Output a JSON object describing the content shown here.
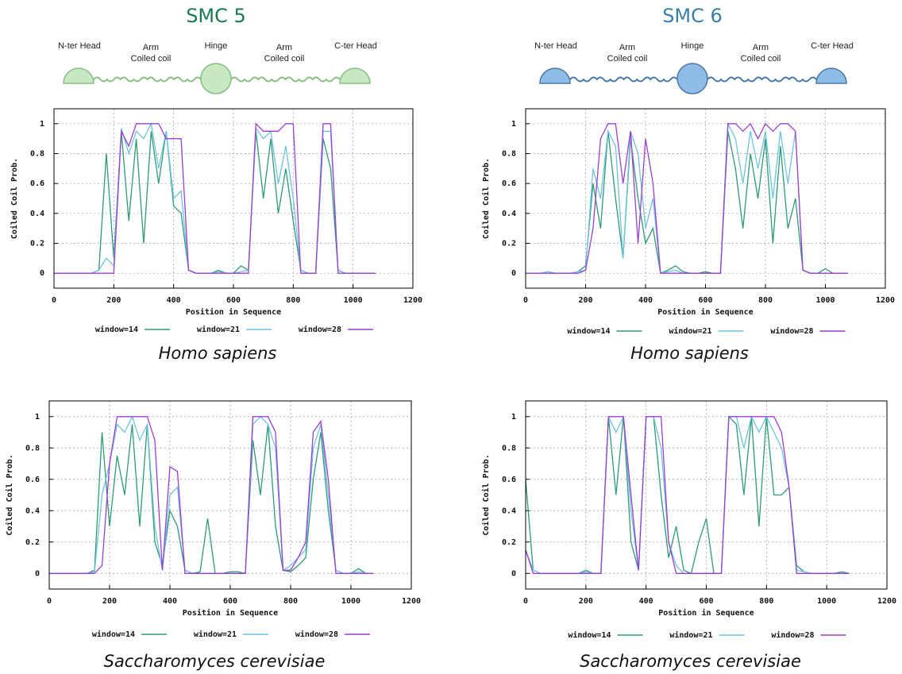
{
  "panels": [
    {
      "title": "SMC 5",
      "domains": [
        [
          "N-ter Head"
        ],
        [
          "Arm",
          "Coiled coil"
        ],
        [
          "Hinge"
        ],
        [
          "Arm",
          "Coiled coil"
        ],
        [
          "C-ter Head"
        ]
      ]
    },
    {
      "title": "SMC 6",
      "domains": [
        [
          "N-ter Head"
        ],
        [
          "Arm",
          "Coiled coil"
        ],
        [
          "Hinge"
        ],
        [
          "Arm",
          "Coiled coil"
        ],
        [
          "C-ter Head"
        ]
      ]
    }
  ],
  "chart_data": [
    {
      "type": "line",
      "caption": "Homo sapiens",
      "xlabel": "Position in Sequence",
      "ylabel": "Coiled Coil Prob.",
      "x": [
        0,
        25,
        50,
        75,
        100,
        125,
        150,
        175,
        200,
        225,
        250,
        275,
        300,
        325,
        350,
        375,
        400,
        425,
        450,
        475,
        500,
        525,
        550,
        575,
        600,
        625,
        650,
        675,
        700,
        725,
        750,
        775,
        800,
        825,
        850,
        875,
        900,
        925,
        950,
        975,
        1000,
        1025,
        1050,
        1075
      ],
      "series": [
        {
          "name": "window=14",
          "color": "#2e9a78",
          "values": [
            0,
            0,
            0,
            0,
            0,
            0,
            0.02,
            0.8,
            0.1,
            0.95,
            0.35,
            0.9,
            0.2,
            0.95,
            0.6,
            0.95,
            0.45,
            0.4,
            0.02,
            0,
            0,
            0,
            0.02,
            0,
            0,
            0.05,
            0.02,
            0.95,
            0.5,
            0.9,
            0.4,
            0.7,
            0.35,
            0.02,
            0,
            0,
            0.9,
            0.7,
            0.02,
            0,
            0,
            0,
            0,
            0
          ]
        },
        {
          "name": "window=21",
          "color": "#6ec3e0",
          "values": [
            0,
            0,
            0,
            0,
            0,
            0,
            0.02,
            0.1,
            0.05,
            0.97,
            0.8,
            0.95,
            0.9,
            1,
            0.7,
            0.95,
            0.5,
            0.55,
            0.02,
            0,
            0,
            0,
            0.01,
            0,
            0,
            0.01,
            0.02,
            0.97,
            0.9,
            0.95,
            0.6,
            0.85,
            0.5,
            0.02,
            0,
            0,
            0.95,
            0.95,
            0.02,
            0,
            0,
            0,
            0,
            0
          ]
        },
        {
          "name": "window=28",
          "color": "#9b3fd0",
          "values": [
            0,
            0,
            0,
            0,
            0,
            0,
            0,
            0,
            0,
            0.95,
            0.85,
            1,
            1,
            1,
            1,
            0.9,
            0.9,
            0.9,
            0.02,
            0,
            0,
            0,
            0,
            0,
            0,
            0,
            0,
            1,
            0.95,
            0.95,
            0.95,
            1,
            1,
            0,
            0,
            0,
            1,
            1,
            0,
            0,
            0,
            0,
            0,
            0
          ]
        }
      ],
      "xlim": [
        0,
        1200
      ],
      "ylim": [
        -0.1,
        1.1
      ],
      "xticks": [
        0,
        200,
        400,
        600,
        800,
        1000,
        1200
      ],
      "yticks": [
        0,
        0.2,
        0.4,
        0.6,
        0.8,
        1
      ],
      "grid": true,
      "legend": "bottom"
    },
    {
      "type": "line",
      "caption": "Homo sapiens",
      "xlabel": "Position in Sequence",
      "ylabel": "Coiled Coil Prob.",
      "x": [
        0,
        25,
        50,
        75,
        100,
        125,
        150,
        175,
        200,
        225,
        250,
        275,
        300,
        325,
        350,
        375,
        400,
        425,
        450,
        475,
        500,
        525,
        550,
        575,
        600,
        625,
        650,
        675,
        700,
        725,
        750,
        775,
        800,
        825,
        850,
        875,
        900,
        925,
        950,
        975,
        1000,
        1025,
        1050,
        1075
      ],
      "series": [
        {
          "name": "window=14",
          "color": "#2e9a78",
          "values": [
            0,
            0,
            0,
            0.01,
            0,
            0,
            0,
            0.01,
            0.05,
            0.6,
            0.3,
            0.95,
            0.5,
            0.1,
            0.9,
            0.5,
            0.2,
            0.3,
            0,
            0.02,
            0.05,
            0.01,
            0,
            0,
            0.01,
            0,
            0,
            0.95,
            0.7,
            0.3,
            0.8,
            0.5,
            0.9,
            0.2,
            0.85,
            0.3,
            0.5,
            0.02,
            0,
            0,
            0.03,
            0,
            0,
            0
          ]
        },
        {
          "name": "window=21",
          "color": "#6ec3e0",
          "values": [
            0,
            0,
            0,
            0.01,
            0,
            0,
            0,
            0.01,
            0.02,
            0.7,
            0.5,
            0.95,
            0.85,
            0.1,
            0.95,
            0.8,
            0.3,
            0.5,
            0,
            0.01,
            0.02,
            0,
            0,
            0,
            0,
            0,
            0,
            1,
            0.9,
            0.6,
            0.95,
            0.7,
            0.95,
            0.5,
            0.95,
            0.6,
            0.95,
            0.02,
            0,
            0,
            0,
            0,
            0,
            0
          ]
        },
        {
          "name": "window=28",
          "color": "#9b3fd0",
          "values": [
            0,
            0,
            0,
            0,
            0,
            0,
            0,
            0,
            0.02,
            0.3,
            0.9,
            1,
            1,
            0.6,
            0.95,
            0.2,
            0.9,
            0.6,
            0,
            0,
            0,
            0,
            0,
            0,
            0,
            0,
            0,
            1,
            1,
            0.95,
            1,
            0.9,
            1,
            0.95,
            1,
            1,
            0.95,
            0.02,
            0,
            0,
            0,
            0,
            0,
            0
          ]
        }
      ],
      "xlim": [
        0,
        1200
      ],
      "ylim": [
        -0.1,
        1.1
      ],
      "xticks": [
        0,
        200,
        400,
        600,
        800,
        1000,
        1200
      ],
      "yticks": [
        0,
        0.2,
        0.4,
        0.6,
        0.8,
        1
      ],
      "grid": true,
      "legend": "bottom"
    },
    {
      "type": "line",
      "caption": "Saccharomyces cerevisiae",
      "xlabel": "Position in Sequence",
      "ylabel": "Coiled Coil Prob.",
      "x": [
        0,
        25,
        50,
        75,
        100,
        125,
        150,
        175,
        200,
        225,
        250,
        275,
        300,
        325,
        350,
        375,
        400,
        425,
        450,
        475,
        500,
        525,
        550,
        575,
        600,
        625,
        650,
        675,
        700,
        725,
        750,
        775,
        800,
        825,
        850,
        875,
        900,
        925,
        950,
        975,
        1000,
        1025,
        1050,
        1075
      ],
      "series": [
        {
          "name": "window=14",
          "color": "#2e9a78",
          "values": [
            0,
            0,
            0,
            0,
            0,
            0,
            0.02,
            0.9,
            0.3,
            0.75,
            0.5,
            0.95,
            0.3,
            0.95,
            0.2,
            0.05,
            0.4,
            0.3,
            0.02,
            0,
            0.01,
            0.35,
            0,
            0,
            0.01,
            0.01,
            0,
            0.85,
            0.5,
            0.95,
            0.3,
            0.02,
            0.01,
            0.05,
            0.1,
            0.6,
            0.9,
            0.4,
            0.02,
            0,
            0,
            0.03,
            0,
            0
          ]
        },
        {
          "name": "window=21",
          "color": "#6ec3e0",
          "values": [
            0,
            0,
            0,
            0,
            0,
            0,
            0.01,
            0.5,
            0.7,
            0.95,
            0.9,
            1,
            0.85,
            0.95,
            0.3,
            0.02,
            0.5,
            0.55,
            0.02,
            0,
            0,
            0,
            0,
            0,
            0,
            0,
            0,
            0.95,
            1,
            0.95,
            0.8,
            0.02,
            0.05,
            0.1,
            0.15,
            0.8,
            0.95,
            0.5,
            0.02,
            0,
            0,
            0.01,
            0,
            0
          ]
        },
        {
          "name": "window=28",
          "color": "#9b3fd0",
          "values": [
            0,
            0,
            0,
            0,
            0,
            0,
            0,
            0.05,
            0.7,
            1,
            1,
            1,
            1,
            1,
            0.85,
            0.02,
            0.68,
            0.65,
            0,
            0,
            0,
            0,
            0,
            0,
            0,
            0,
            0,
            1,
            1,
            1,
            0.9,
            0.02,
            0.02,
            0.1,
            0.2,
            0.9,
            0.97,
            0.6,
            0,
            0,
            0,
            0,
            0,
            0
          ]
        }
      ],
      "xlim": [
        0,
        1200
      ],
      "ylim": [
        -0.1,
        1.1
      ],
      "xticks": [
        0,
        200,
        400,
        600,
        800,
        1000,
        1200
      ],
      "yticks": [
        0,
        0.2,
        0.4,
        0.6,
        0.8,
        1
      ],
      "grid": true,
      "legend": "bottom"
    },
    {
      "type": "line",
      "caption": "Saccharomyces cerevisiae",
      "xlabel": "Position in Sequence",
      "ylabel": "Coiled Coil Prob.",
      "x": [
        0,
        25,
        50,
        75,
        100,
        125,
        150,
        175,
        200,
        225,
        250,
        275,
        300,
        325,
        350,
        375,
        400,
        425,
        450,
        475,
        500,
        525,
        550,
        575,
        600,
        625,
        650,
        675,
        700,
        725,
        750,
        775,
        800,
        825,
        850,
        875,
        900,
        925,
        950,
        975,
        1000,
        1025,
        1050,
        1075
      ],
      "series": [
        {
          "name": "window=14",
          "color": "#2e9a78",
          "values": [
            0.6,
            0.02,
            0,
            0,
            0,
            0,
            0,
            0,
            0.02,
            0,
            0,
            1,
            0.5,
            1,
            0.2,
            0.02,
            1,
            1,
            0.5,
            0.1,
            0.3,
            0.02,
            0,
            0.2,
            0.35,
            0,
            0,
            1,
            0.95,
            0.5,
            1,
            0.3,
            1,
            0.5,
            0.5,
            0.55,
            0.05,
            0.01,
            0,
            0,
            0,
            0,
            0.01,
            0
          ]
        },
        {
          "name": "window=21",
          "color": "#6ec3e0",
          "values": [
            0.15,
            0.02,
            0,
            0,
            0,
            0,
            0,
            0,
            0.01,
            0,
            0,
            1,
            0.9,
            1,
            0.4,
            0.02,
            1,
            1,
            0.8,
            0.2,
            0.05,
            0,
            0,
            0,
            0,
            0,
            0,
            1,
            1,
            0.8,
            1,
            0.9,
            1,
            0.9,
            0.8,
            0.55,
            0.02,
            0.01,
            0,
            0,
            0,
            0,
            0,
            0
          ]
        },
        {
          "name": "window=28",
          "color": "#9b3fd0",
          "values": [
            0.15,
            0,
            0,
            0,
            0,
            0,
            0,
            0,
            0,
            0,
            0,
            1,
            1,
            1,
            0.5,
            0.02,
            1,
            1,
            1,
            0.2,
            0,
            0,
            0,
            0,
            0,
            0,
            0,
            1,
            1,
            1,
            1,
            1,
            1,
            1,
            0.9,
            0.55,
            0,
            0,
            0,
            0,
            0,
            0,
            0,
            0
          ]
        }
      ],
      "xlim": [
        0,
        1200
      ],
      "ylim": [
        -0.1,
        1.1
      ],
      "xticks": [
        0,
        200,
        400,
        600,
        800,
        1000,
        1200
      ],
      "yticks": [
        0,
        0.2,
        0.4,
        0.6,
        0.8,
        1
      ],
      "grid": true,
      "legend": "bottom"
    }
  ]
}
